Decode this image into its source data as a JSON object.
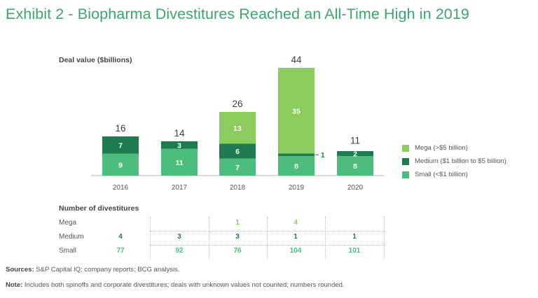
{
  "title": "Exhibit 2 - Biopharma Divestitures Reached an All-Time High in 2019",
  "colors": {
    "mega": "#8ccb5e",
    "medium": "#1e7b4f",
    "small": "#4dbd7d",
    "title": "#3aa56c"
  },
  "chart_data": {
    "type": "bar",
    "stacked": true,
    "ylabel": "Deal value ($billions)",
    "categories": [
      "2016",
      "2017",
      "2018",
      "2019",
      "2020"
    ],
    "series": [
      {
        "name": "Small (<$1 billion)",
        "key": "small",
        "values": [
          9,
          11,
          7,
          8,
          8
        ]
      },
      {
        "name": "Medium ($1 billion to $5 billion)",
        "key": "medium",
        "values": [
          7,
          3,
          6,
          1,
          2
        ]
      },
      {
        "name": "Mega (>$5 billion)",
        "key": "mega",
        "values": [
          0,
          0,
          13,
          35,
          0
        ]
      }
    ],
    "totals": [
      16,
      14,
      26,
      44,
      11
    ],
    "legend_order": [
      "Mega (>$5 billion)",
      "Medium ($1 billion to $5 billion)",
      "Small (<$1 billion)"
    ],
    "legend_position": "right"
  },
  "divestitures": {
    "title": "Number of divestitures",
    "rows": [
      {
        "label": "Mega",
        "key": "mega",
        "values": [
          "",
          "",
          "1",
          "4",
          ""
        ]
      },
      {
        "label": "Medium",
        "key": "medium",
        "values": [
          "4",
          "3",
          "3",
          "1",
          "1"
        ]
      },
      {
        "label": "Small",
        "key": "small",
        "values": [
          "77",
          "92",
          "76",
          "104",
          "101"
        ]
      }
    ]
  },
  "footer": {
    "sources_label": "Sources:",
    "sources_text": " S&P Capital IQ; company reports; BCG analysis.",
    "note_label": "Note:",
    "note_text": " Includes both spinoffs and corporate divestitures; deals with unknown values not counted; numbers rounded."
  }
}
